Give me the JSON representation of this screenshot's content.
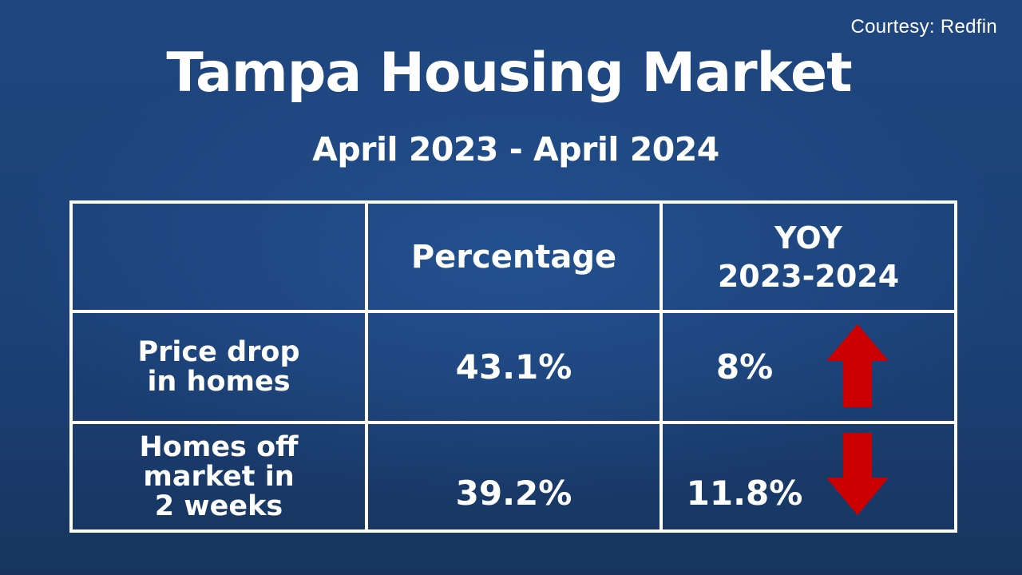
{
  "courtesy": "Courtesy: Redfin",
  "title": "Tampa Housing Market",
  "subtitle": "April 2023 - April 2024",
  "table": {
    "headers": {
      "col1": "",
      "col2": "Percentage",
      "col3_line1": "YOY",
      "col3_line2": "2023-2024"
    },
    "rows": [
      {
        "label_lines": [
          "Price drop",
          "in homes"
        ],
        "percentage": "43.1%",
        "yoy": "8%",
        "trend": "up",
        "trend_icon": "arrow-up-icon"
      },
      {
        "label_lines": [
          "Homes off",
          "market in",
          "2 weeks"
        ],
        "percentage": "39.2%",
        "yoy": "11.8%",
        "trend": "down",
        "trend_icon": "arrow-down-icon"
      }
    ]
  },
  "colors": {
    "background": "#1f467f",
    "text": "#ffffff",
    "arrow": "#cc0000"
  }
}
